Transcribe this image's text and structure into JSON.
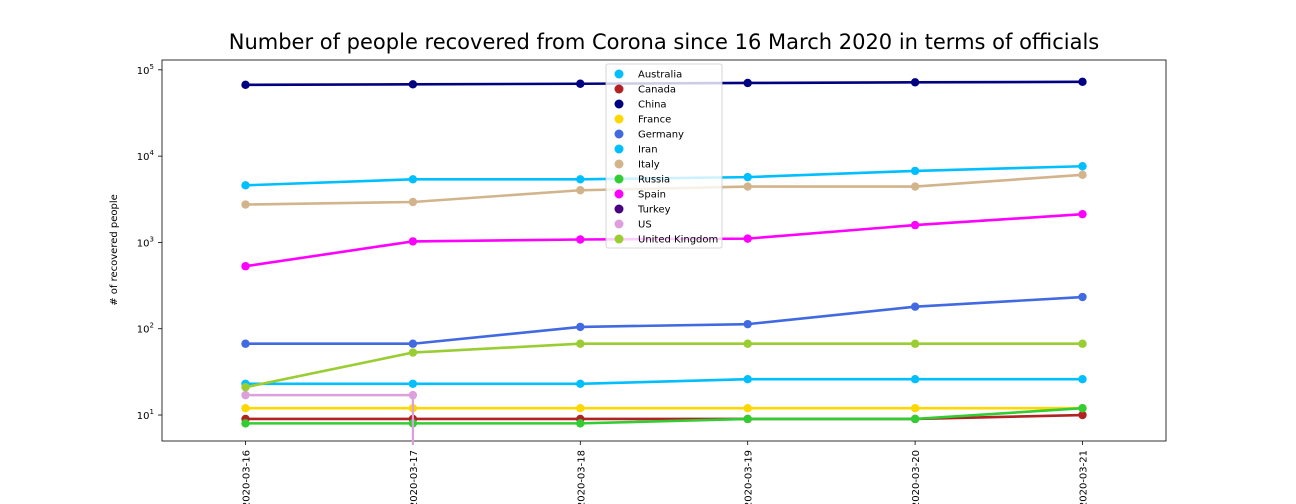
{
  "chart_data": {
    "type": "line",
    "title": "Number of people recovered from Corona since 16 March 2020 in terms of officials",
    "xlabel": "",
    "ylabel": "# of recovered people",
    "yscale": "log",
    "ylim": [
      5,
      130000
    ],
    "y_ticks": [
      {
        "base": "10",
        "exp": "1",
        "value": 10
      },
      {
        "base": "10",
        "exp": "2",
        "value": 100
      },
      {
        "base": "10",
        "exp": "3",
        "value": 1000
      },
      {
        "base": "10",
        "exp": "4",
        "value": 10000
      },
      {
        "base": "10",
        "exp": "5",
        "value": 100000
      }
    ],
    "categories": [
      "2020-03-16",
      "2020-03-17",
      "2020-03-18",
      "2020-03-19",
      "2020-03-20",
      "2020-03-21"
    ],
    "grid": false,
    "legend_position": "top-center",
    "series": [
      {
        "name": "Australia",
        "color": "#00bfff",
        "values": [
          23,
          23,
          23,
          26,
          26,
          26
        ]
      },
      {
        "name": "Canada",
        "color": "#b22222",
        "values": [
          9,
          9,
          9,
          9,
          9,
          10
        ]
      },
      {
        "name": "China",
        "color": "#000080",
        "values": [
          67000,
          67900,
          69000,
          70400,
          71700,
          72600
        ]
      },
      {
        "name": "France",
        "color": "#ffd700",
        "values": [
          12,
          12,
          12,
          12,
          12,
          12
        ]
      },
      {
        "name": "Germany",
        "color": "#4169e1",
        "values": [
          67,
          67,
          105,
          113,
          180,
          233
        ]
      },
      {
        "name": "Iran",
        "color": "#00bfff",
        "values": [
          4590,
          5389,
          5389,
          5710,
          6745,
          7635
        ]
      },
      {
        "name": "Italy",
        "color": "#d2b48c",
        "values": [
          2749,
          2941,
          4025,
          4440,
          4440,
          6072
        ]
      },
      {
        "name": "Russia",
        "color": "#32cd32",
        "values": [
          8,
          8,
          8,
          9,
          9,
          12
        ]
      },
      {
        "name": "Spain",
        "color": "#ff00ff",
        "values": [
          530,
          1028,
          1081,
          1107,
          1588,
          2125
        ]
      },
      {
        "name": "Turkey",
        "color": "#4b0082",
        "values": [
          null,
          null,
          null,
          null,
          null,
          null
        ]
      },
      {
        "name": "US",
        "color": "#dda0dd",
        "values": [
          17,
          17,
          null,
          null,
          null,
          null
        ]
      },
      {
        "name": "United Kingdom",
        "color": "#9acd32",
        "values": [
          21,
          53,
          67,
          67,
          67,
          67
        ]
      }
    ]
  }
}
